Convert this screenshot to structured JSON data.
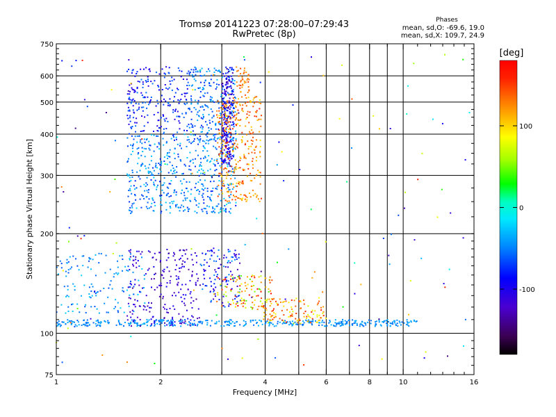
{
  "chart_data": {
    "type": "scatter",
    "title": "Tromsø 20141223 07:28:00–07:29:43",
    "subtitle": "RwPretec (8p)",
    "xlabel": "Frequency [MHz]",
    "ylabel": "Stationary phase Virtual Height [km]",
    "x_scale": "log",
    "y_scale": "log",
    "xlim": [
      1,
      16
    ],
    "ylim": [
      75,
      750
    ],
    "x_ticks": [
      1,
      2,
      4,
      6,
      8,
      10,
      16
    ],
    "x_minor_ticks": [
      3,
      5,
      7,
      9
    ],
    "y_ticks": [
      75,
      100,
      200,
      300,
      400,
      500,
      600,
      750
    ],
    "grid": true,
    "phase_info": {
      "heading": "Phases",
      "line_o": "mean, sd,O: -69.6, 19.0",
      "line_x": "mean, sd,X: 109.7, 24.9"
    },
    "colorbar": {
      "label": "[deg]",
      "min": -180,
      "max": 180,
      "ticks": [
        100,
        0,
        -100
      ]
    },
    "clusters": [
      {
        "x": [
          1.0,
          11.0
        ],
        "y": [
          105,
          110
        ],
        "phase": [
          -60,
          -30
        ],
        "n": 420
      },
      {
        "x": [
          1.0,
          1.8
        ],
        "y": [
          115,
          175
        ],
        "phase": [
          -70,
          -20
        ],
        "n": 140
      },
      {
        "x": [
          1.6,
          2.6
        ],
        "y": [
          105,
          180
        ],
        "phase": [
          -140,
          -90
        ],
        "n": 220
      },
      {
        "x": [
          2.6,
          3.4
        ],
        "y": [
          120,
          180
        ],
        "phase": [
          -130,
          -40
        ],
        "n": 120
      },
      {
        "x": [
          2.9,
          4.2
        ],
        "y": [
          118,
          150
        ],
        "phase": [
          40,
          180
        ],
        "n": 110
      },
      {
        "x": [
          3.9,
          6.0
        ],
        "y": [
          107,
          128
        ],
        "phase": [
          70,
          160
        ],
        "n": 120
      },
      {
        "x": [
          1.6,
          3.3
        ],
        "y": [
          230,
          400
        ],
        "phase": [
          -80,
          -20
        ],
        "n": 520
      },
      {
        "x": [
          1.6,
          2.4
        ],
        "y": [
          400,
          640
        ],
        "phase": [
          -110,
          -50
        ],
        "n": 220
      },
      {
        "x": [
          2.4,
          3.3
        ],
        "y": [
          380,
          640
        ],
        "phase": [
          -80,
          -30
        ],
        "n": 260
      },
      {
        "x": [
          3.0,
          3.25
        ],
        "y": [
          320,
          640
        ],
        "phase": [
          -140,
          -70
        ],
        "n": 200
      },
      {
        "x": [
          2.9,
          3.9
        ],
        "y": [
          250,
          520
        ],
        "phase": [
          90,
          160
        ],
        "n": 320
      },
      {
        "x": [
          3.3,
          3.6
        ],
        "y": [
          520,
          640
        ],
        "phase": [
          110,
          150
        ],
        "n": 40
      },
      {
        "x": [
          1.0,
          16.0
        ],
        "y": [
          80,
          700
        ],
        "phase": [
          -150,
          160
        ],
        "n": 150
      }
    ]
  }
}
